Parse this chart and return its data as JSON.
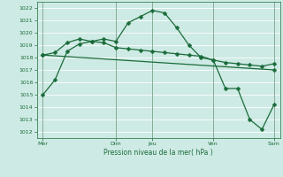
{
  "xlabel": "Pression niveau de la mer( hPa )",
  "ylim": [
    1011.5,
    1022.5
  ],
  "yticks": [
    1012,
    1013,
    1014,
    1015,
    1016,
    1017,
    1018,
    1019,
    1020,
    1021,
    1022
  ],
  "xtick_labels": [
    "Mer",
    "Dim",
    "Jeu",
    "Ven",
    "Sam"
  ],
  "xtick_positions": [
    0,
    6,
    9,
    14,
    19
  ],
  "bg_color": "#ceeae4",
  "grid_color": "#ffffff",
  "line_color": "#1a6b3a",
  "line1_x": [
    0,
    1,
    2,
    3,
    4,
    5,
    6,
    7,
    8,
    9,
    10,
    11,
    12,
    13,
    14,
    15,
    16,
    17,
    18,
    19
  ],
  "line1_y": [
    1015.0,
    1016.2,
    1018.5,
    1019.1,
    1019.3,
    1019.5,
    1019.3,
    1020.8,
    1021.3,
    1021.8,
    1021.6,
    1020.4,
    1019.0,
    1018.0,
    1017.8,
    1015.5,
    1015.5,
    1013.0,
    1012.2,
    1014.2
  ],
  "line2_x": [
    0,
    1,
    2,
    3,
    4,
    5,
    6,
    7,
    8,
    9,
    10,
    11,
    12,
    13,
    14,
    15,
    16,
    17,
    18,
    19
  ],
  "line2_y": [
    1018.2,
    1018.4,
    1019.2,
    1019.5,
    1019.3,
    1019.2,
    1018.8,
    1018.7,
    1018.6,
    1018.5,
    1018.4,
    1018.3,
    1018.2,
    1018.1,
    1017.8,
    1017.6,
    1017.5,
    1017.4,
    1017.3,
    1017.5
  ],
  "line3_x": [
    0,
    19
  ],
  "line3_y": [
    1018.2,
    1017.0
  ],
  "xlim": [
    -0.5,
    19.5
  ],
  "vlines": [
    0,
    6,
    9,
    14,
    19
  ]
}
